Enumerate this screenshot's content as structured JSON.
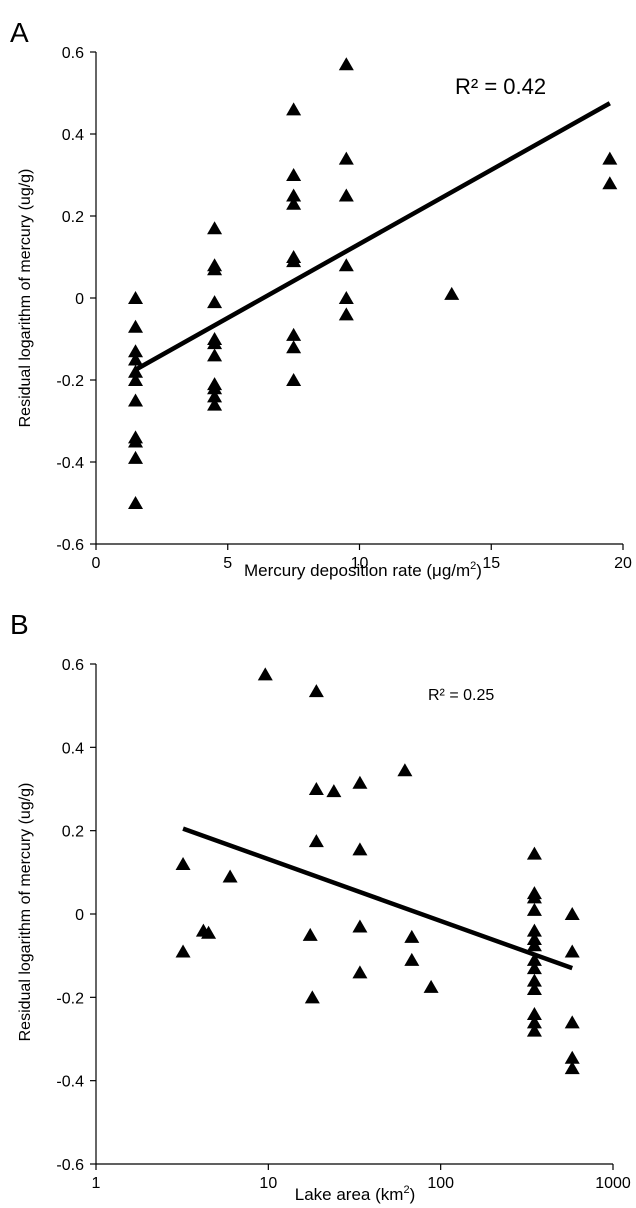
{
  "chart_data": [
    {
      "panel_label": "A",
      "type": "scatter",
      "xlabel_text": "Mercury deposition rate (μg/m",
      "xlabel_sup": "2",
      "xlabel_end": ")",
      "ylabel": "Residual logarithm  of mercury (ug/g)",
      "xlim": [
        0,
        20
      ],
      "ylim": [
        -0.6,
        0.6
      ],
      "x_scale": "linear",
      "xticks": [
        0,
        5,
        10,
        15,
        20
      ],
      "xtick_labels": [
        "0",
        "5",
        "10",
        "15",
        "20"
      ],
      "yticks": [
        -0.6,
        -0.4,
        -0.2,
        0,
        0.2,
        0.4,
        0.6
      ],
      "ytick_labels": [
        "-0.6",
        "-0.4",
        "-0.2",
        "0",
        "0.2",
        "0.4",
        "0.6"
      ],
      "annotation": "R² = 0.42",
      "trendline": {
        "x": [
          1.5,
          19.5
        ],
        "y": [
          -0.175,
          0.475
        ]
      },
      "points": [
        {
          "x": 1.5,
          "y": 0.0
        },
        {
          "x": 1.5,
          "y": -0.07
        },
        {
          "x": 1.5,
          "y": -0.13
        },
        {
          "x": 1.5,
          "y": -0.15
        },
        {
          "x": 1.5,
          "y": -0.18
        },
        {
          "x": 1.5,
          "y": -0.2
        },
        {
          "x": 1.5,
          "y": -0.25
        },
        {
          "x": 1.5,
          "y": -0.34
        },
        {
          "x": 1.5,
          "y": -0.35
        },
        {
          "x": 1.5,
          "y": -0.39
        },
        {
          "x": 1.5,
          "y": -0.5
        },
        {
          "x": 4.5,
          "y": 0.17
        },
        {
          "x": 4.5,
          "y": 0.07
        },
        {
          "x": 4.5,
          "y": 0.08
        },
        {
          "x": 4.5,
          "y": -0.01
        },
        {
          "x": 4.5,
          "y": -0.1
        },
        {
          "x": 4.5,
          "y": -0.11
        },
        {
          "x": 4.5,
          "y": -0.14
        },
        {
          "x": 4.5,
          "y": -0.21
        },
        {
          "x": 4.5,
          "y": -0.22
        },
        {
          "x": 4.5,
          "y": -0.24
        },
        {
          "x": 4.5,
          "y": -0.26
        },
        {
          "x": 7.5,
          "y": 0.46
        },
        {
          "x": 7.5,
          "y": 0.3
        },
        {
          "x": 7.5,
          "y": 0.25
        },
        {
          "x": 7.5,
          "y": 0.23
        },
        {
          "x": 7.5,
          "y": 0.1
        },
        {
          "x": 7.5,
          "y": 0.09
        },
        {
          "x": 7.5,
          "y": -0.09
        },
        {
          "x": 7.5,
          "y": -0.12
        },
        {
          "x": 7.5,
          "y": -0.2
        },
        {
          "x": 9.5,
          "y": 0.57
        },
        {
          "x": 9.5,
          "y": 0.34
        },
        {
          "x": 9.5,
          "y": 0.25
        },
        {
          "x": 9.5,
          "y": 0.08
        },
        {
          "x": 9.5,
          "y": 0.0
        },
        {
          "x": 9.5,
          "y": -0.04
        },
        {
          "x": 13.5,
          "y": 0.01
        },
        {
          "x": 19.5,
          "y": 0.34
        },
        {
          "x": 19.5,
          "y": 0.28
        }
      ]
    },
    {
      "panel_label": "B",
      "type": "scatter",
      "xlabel_text": "Lake area (km",
      "xlabel_sup": "2",
      "xlabel_end": ")",
      "ylabel": "Residual logarithm  of mercury (ug/g)",
      "xlim": [
        1,
        1000
      ],
      "ylim": [
        -0.6,
        0.6
      ],
      "x_scale": "log",
      "xticks": [
        1,
        10,
        100,
        1000
      ],
      "xtick_labels": [
        "1",
        "10",
        "100",
        "1000"
      ],
      "yticks": [
        -0.6,
        -0.4,
        -0.2,
        0,
        0.2,
        0.4,
        0.6
      ],
      "ytick_labels": [
        "-0.6",
        "-0.4",
        "-0.2",
        "0",
        "0.2",
        "0.4",
        "0.6"
      ],
      "annotation": "R² = 0.25",
      "trendline": {
        "x": [
          3.2,
          580
        ],
        "y": [
          0.205,
          -0.13
        ]
      },
      "points": [
        {
          "x": 3.2,
          "y": 0.12
        },
        {
          "x": 3.2,
          "y": -0.09
        },
        {
          "x": 4.2,
          "y": -0.04
        },
        {
          "x": 4.5,
          "y": -0.045
        },
        {
          "x": 6,
          "y": 0.09
        },
        {
          "x": 9.6,
          "y": 0.575
        },
        {
          "x": 17.5,
          "y": -0.05
        },
        {
          "x": 18,
          "y": -0.2
        },
        {
          "x": 19,
          "y": 0.535
        },
        {
          "x": 19,
          "y": 0.3
        },
        {
          "x": 19,
          "y": 0.175
        },
        {
          "x": 24,
          "y": 0.295
        },
        {
          "x": 34,
          "y": 0.315
        },
        {
          "x": 34,
          "y": 0.155
        },
        {
          "x": 34,
          "y": -0.03
        },
        {
          "x": 34,
          "y": -0.14
        },
        {
          "x": 62,
          "y": 0.345
        },
        {
          "x": 68,
          "y": -0.055
        },
        {
          "x": 68,
          "y": -0.11
        },
        {
          "x": 88,
          "y": -0.175
        },
        {
          "x": 350,
          "y": 0.145
        },
        {
          "x": 350,
          "y": 0.05
        },
        {
          "x": 350,
          "y": 0.04
        },
        {
          "x": 350,
          "y": 0.01
        },
        {
          "x": 350,
          "y": -0.04
        },
        {
          "x": 350,
          "y": -0.06
        },
        {
          "x": 350,
          "y": -0.075
        },
        {
          "x": 350,
          "y": -0.11
        },
        {
          "x": 350,
          "y": -0.13
        },
        {
          "x": 350,
          "y": -0.16
        },
        {
          "x": 350,
          "y": -0.18
        },
        {
          "x": 350,
          "y": -0.24
        },
        {
          "x": 350,
          "y": -0.26
        },
        {
          "x": 350,
          "y": -0.28
        },
        {
          "x": 580,
          "y": 0.0
        },
        {
          "x": 580,
          "y": -0.09
        },
        {
          "x": 580,
          "y": -0.26
        },
        {
          "x": 580,
          "y": -0.345
        },
        {
          "x": 580,
          "y": -0.37
        }
      ]
    }
  ]
}
